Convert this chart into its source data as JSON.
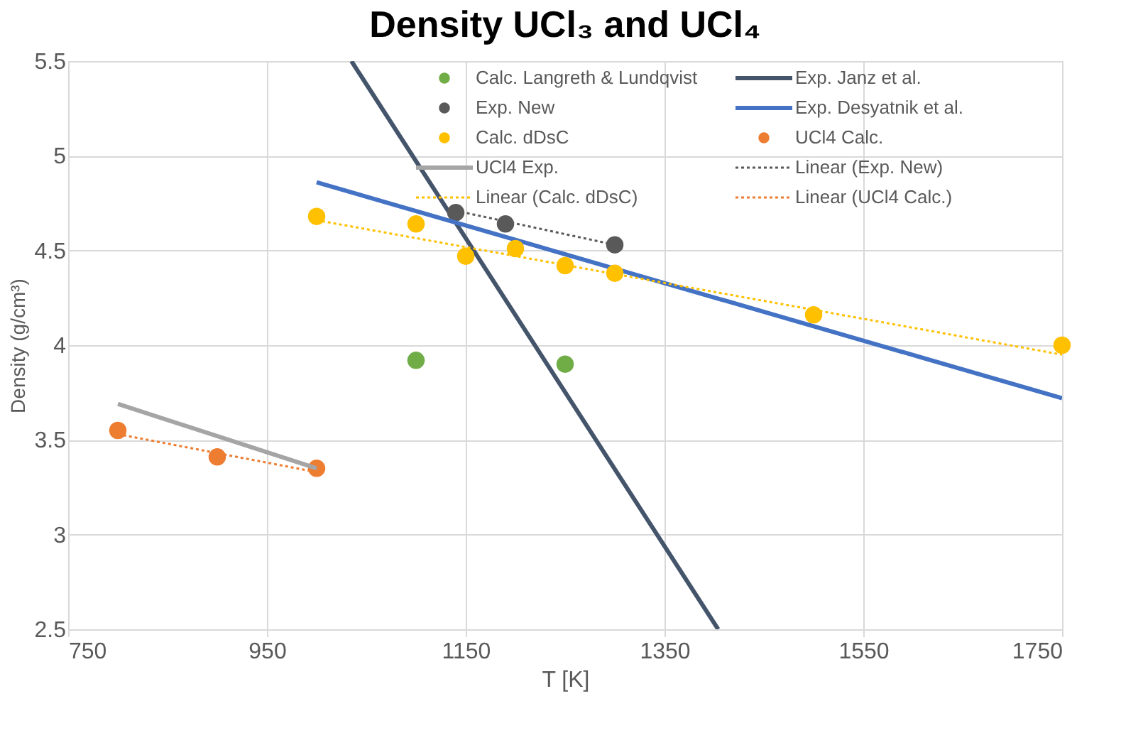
{
  "chart_data": {
    "type": "scatter",
    "title": "Density UCl₃ and UCl₄",
    "xlabel": "T [K]",
    "ylabel": "Density (g/cm³)",
    "xlim": [
      750,
      1750
    ],
    "xticks": [
      750,
      950,
      1150,
      1350,
      1550,
      1750
    ],
    "ylim": [
      2.5,
      5.5
    ],
    "yticks": [
      2.5,
      3,
      3.5,
      4,
      4.5,
      5,
      5.5
    ],
    "grid": true,
    "legend": "top right",
    "marker": "circle",
    "series": [
      {
        "name": "Calc. Langreth & Lundqvist",
        "color": "#70ad47",
        "x": [
          1100,
          1250
        ],
        "values": [
          3.92,
          3.9
        ]
      },
      {
        "name": "Exp. Janz et al.",
        "type": "line",
        "color": "#44546a",
        "marker": "none",
        "line_style": "solid",
        "x": [
          1035,
          1404
        ],
        "values": [
          5.5,
          2.5
        ]
      },
      {
        "name": "Exp. New",
        "color": "#595959",
        "x": [
          1140,
          1190,
          1300
        ],
        "values": [
          4.7,
          4.64,
          4.53
        ]
      },
      {
        "name": "Exp. Desyatnik et al.",
        "type": "line",
        "color": "#4472c4",
        "marker": "none",
        "line_style": "solid",
        "x": [
          1000,
          1750
        ],
        "values": [
          4.86,
          3.72
        ]
      },
      {
        "name": "Calc. dDsC",
        "color": "#ffc000",
        "x": [
          1000,
          1100,
          1150,
          1200,
          1250,
          1300,
          1500,
          1750
        ],
        "values": [
          4.68,
          4.64,
          4.47,
          4.51,
          4.42,
          4.38,
          4.16,
          4.0
        ]
      },
      {
        "name": "UCl4 Calc.",
        "color": "#ed7d31",
        "x": [
          800,
          900,
          1000
        ],
        "values": [
          3.55,
          3.41,
          3.35
        ]
      },
      {
        "name": "UCl4 Exp.",
        "type": "line",
        "color": "#a5a5a5",
        "marker": "none",
        "line_style": "solid",
        "x": [
          800,
          1000
        ],
        "values": [
          3.69,
          3.35
        ]
      },
      {
        "name": "Linear (Exp. New)",
        "type": "line",
        "color": "#595959",
        "marker": "none",
        "line_style": "dotted",
        "x": [
          1140,
          1300
        ],
        "values": [
          4.71,
          4.53
        ]
      },
      {
        "name": "Linear (Calc. dDsC)",
        "type": "line",
        "color": "#ffc000",
        "marker": "none",
        "line_style": "dotted",
        "x": [
          1000,
          1750
        ],
        "values": [
          4.66,
          3.95
        ]
      },
      {
        "name": "Linear (UCl4 Calc.)",
        "type": "line",
        "color": "#ed7d31",
        "marker": "none",
        "line_style": "dotted",
        "x": [
          800,
          1000
        ],
        "values": [
          3.53,
          3.33
        ]
      }
    ]
  }
}
